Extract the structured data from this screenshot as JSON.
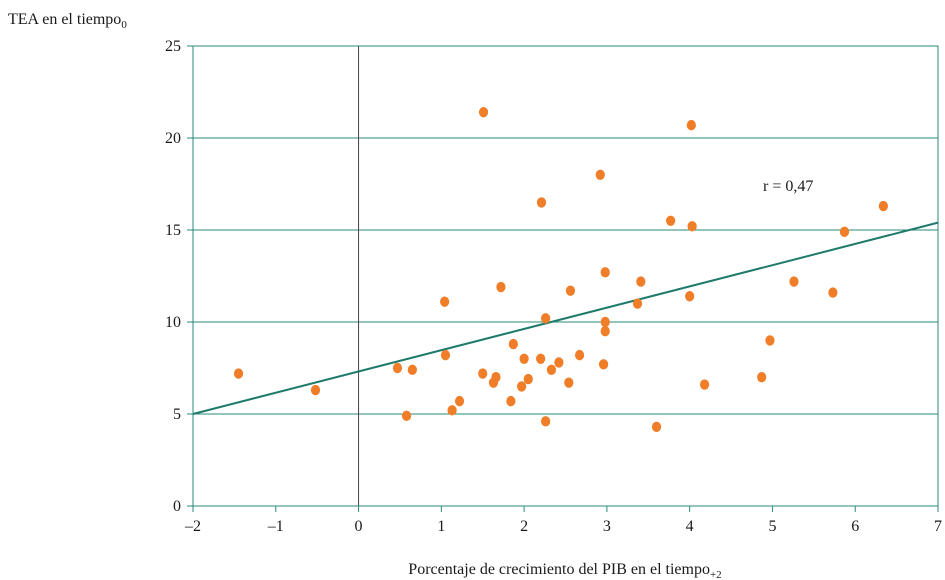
{
  "chart_data": {
    "type": "scatter",
    "title": "",
    "ylabel_main": "TEA en el tiempo",
    "ylabel_sub": "0",
    "xlabel_main": "Porcentaje de crecimiento del PIB en el tiempo",
    "xlabel_sub": "+2",
    "xlim": [
      -2,
      7
    ],
    "ylim": [
      0,
      25
    ],
    "xticks": [
      -2,
      -1,
      0,
      1,
      2,
      3,
      4,
      5,
      6,
      7
    ],
    "xtick_labels": [
      "–2",
      "–1",
      "0",
      "1",
      "2",
      "3",
      "4",
      "5",
      "6",
      "7"
    ],
    "yticks": [
      0,
      5,
      10,
      15,
      20,
      25
    ],
    "ytick_labels": [
      "0",
      "5",
      "10",
      "15",
      "20",
      "25"
    ],
    "grid": "horizontal",
    "annotation": {
      "text": "r = 0,47",
      "x": 5.0,
      "y": 17.3
    },
    "trend_line": {
      "x": [
        -2,
        7
      ],
      "y": [
        5.0,
        15.4
      ]
    },
    "colors": {
      "points": "#f07d28",
      "trend": "#1e7a6a",
      "grid": "#2a8a7a",
      "frame": "#2a8a7a",
      "zero_axis": "#444444"
    },
    "points": [
      {
        "x": -1.45,
        "y": 7.2
      },
      {
        "x": -0.52,
        "y": 6.3
      },
      {
        "x": 0.47,
        "y": 7.5
      },
      {
        "x": 0.58,
        "y": 4.9
      },
      {
        "x": 0.65,
        "y": 7.4
      },
      {
        "x": 1.04,
        "y": 11.1
      },
      {
        "x": 1.05,
        "y": 8.2
      },
      {
        "x": 1.13,
        "y": 5.2
      },
      {
        "x": 1.22,
        "y": 5.7
      },
      {
        "x": 1.51,
        "y": 21.4
      },
      {
        "x": 1.5,
        "y": 7.2
      },
      {
        "x": 1.63,
        "y": 6.7
      },
      {
        "x": 1.66,
        "y": 7.0
      },
      {
        "x": 1.72,
        "y": 11.9
      },
      {
        "x": 1.84,
        "y": 5.7
      },
      {
        "x": 1.87,
        "y": 8.8
      },
      {
        "x": 1.97,
        "y": 6.5
      },
      {
        "x": 2.0,
        "y": 8.0
      },
      {
        "x": 2.05,
        "y": 6.9
      },
      {
        "x": 2.2,
        "y": 8.0
      },
      {
        "x": 2.21,
        "y": 16.5
      },
      {
        "x": 2.26,
        "y": 10.2
      },
      {
        "x": 2.26,
        "y": 4.6
      },
      {
        "x": 2.33,
        "y": 7.4
      },
      {
        "x": 2.42,
        "y": 7.8
      },
      {
        "x": 2.54,
        "y": 6.7
      },
      {
        "x": 2.56,
        "y": 11.7
      },
      {
        "x": 2.67,
        "y": 8.2
      },
      {
        "x": 2.92,
        "y": 18.0
      },
      {
        "x": 2.96,
        "y": 7.7
      },
      {
        "x": 2.98,
        "y": 12.7
      },
      {
        "x": 2.98,
        "y": 10.0
      },
      {
        "x": 2.98,
        "y": 9.5
      },
      {
        "x": 3.37,
        "y": 11.0
      },
      {
        "x": 3.41,
        "y": 12.2
      },
      {
        "x": 3.6,
        "y": 4.3
      },
      {
        "x": 3.77,
        "y": 15.5
      },
      {
        "x": 4.0,
        "y": 11.4
      },
      {
        "x": 4.02,
        "y": 20.7
      },
      {
        "x": 4.03,
        "y": 15.2
      },
      {
        "x": 4.18,
        "y": 6.6
      },
      {
        "x": 4.87,
        "y": 7.0
      },
      {
        "x": 4.97,
        "y": 9.0
      },
      {
        "x": 5.26,
        "y": 12.2
      },
      {
        "x": 5.73,
        "y": 11.6
      },
      {
        "x": 5.87,
        "y": 14.9
      },
      {
        "x": 6.34,
        "y": 16.3
      }
    ]
  }
}
